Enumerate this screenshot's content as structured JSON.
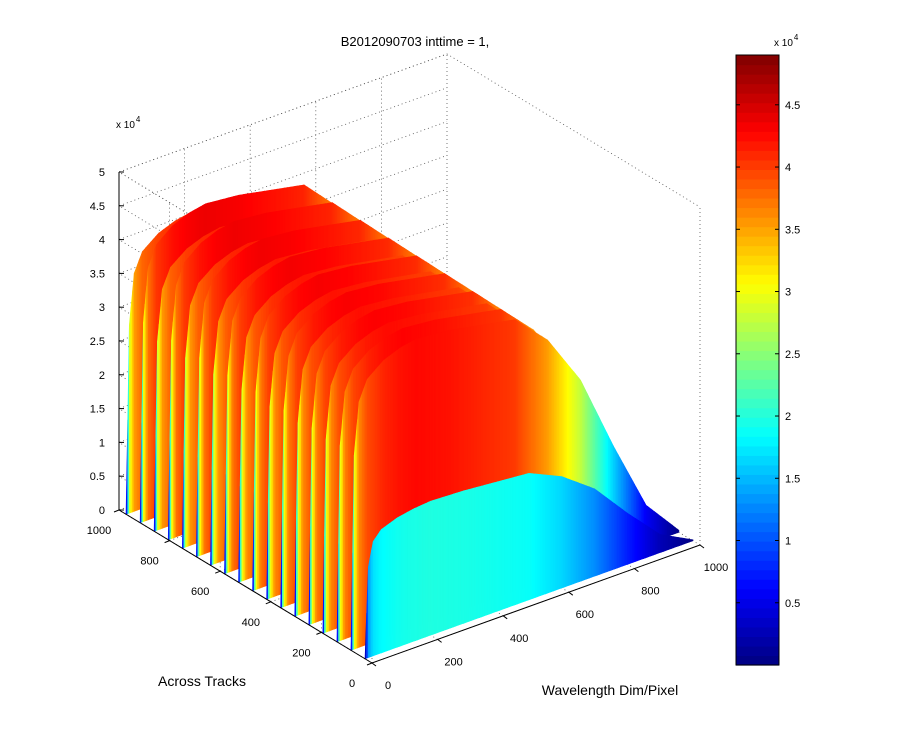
{
  "chart_data": {
    "type": "surface3d",
    "title": "B2012090703 inttime = 1,",
    "xlabel": "Wavelength Dim/Pixel",
    "ylabel": "Across Tracks",
    "zlabel": "",
    "xlim": [
      0,
      1000
    ],
    "ylim": [
      0,
      1000
    ],
    "zlim": [
      0,
      50000
    ],
    "x_ticks": [
      "0",
      "200",
      "400",
      "600",
      "800",
      "1000"
    ],
    "y_ticks": [
      "0",
      "200",
      "400",
      "600",
      "800",
      "1000"
    ],
    "z_ticks": [
      "0",
      "0.5",
      "1",
      "1.5",
      "2",
      "2.5",
      "3",
      "3.5",
      "4",
      "4.5",
      "5"
    ],
    "z_exponent": "x 10",
    "z_exponent_power": "4",
    "grid": true,
    "colormap": "jet",
    "colorbar": {
      "range": [
        0,
        49000
      ],
      "ticks": [
        "0.5",
        "1",
        "1.5",
        "2",
        "2.5",
        "3",
        "3.5",
        "4",
        "4.5"
      ],
      "exponent": "x 10",
      "exponent_power": "4"
    },
    "surface_profile": {
      "wavelength_pixel": [
        0,
        10,
        25,
        50,
        100,
        150,
        200,
        300,
        400,
        500,
        600,
        700,
        800,
        900,
        1000
      ],
      "peak_intensity": [
        0,
        30000,
        38000,
        41000,
        43000,
        44000,
        44500,
        44000,
        43000,
        42000,
        37000,
        29000,
        17000,
        6000,
        300
      ]
    }
  }
}
